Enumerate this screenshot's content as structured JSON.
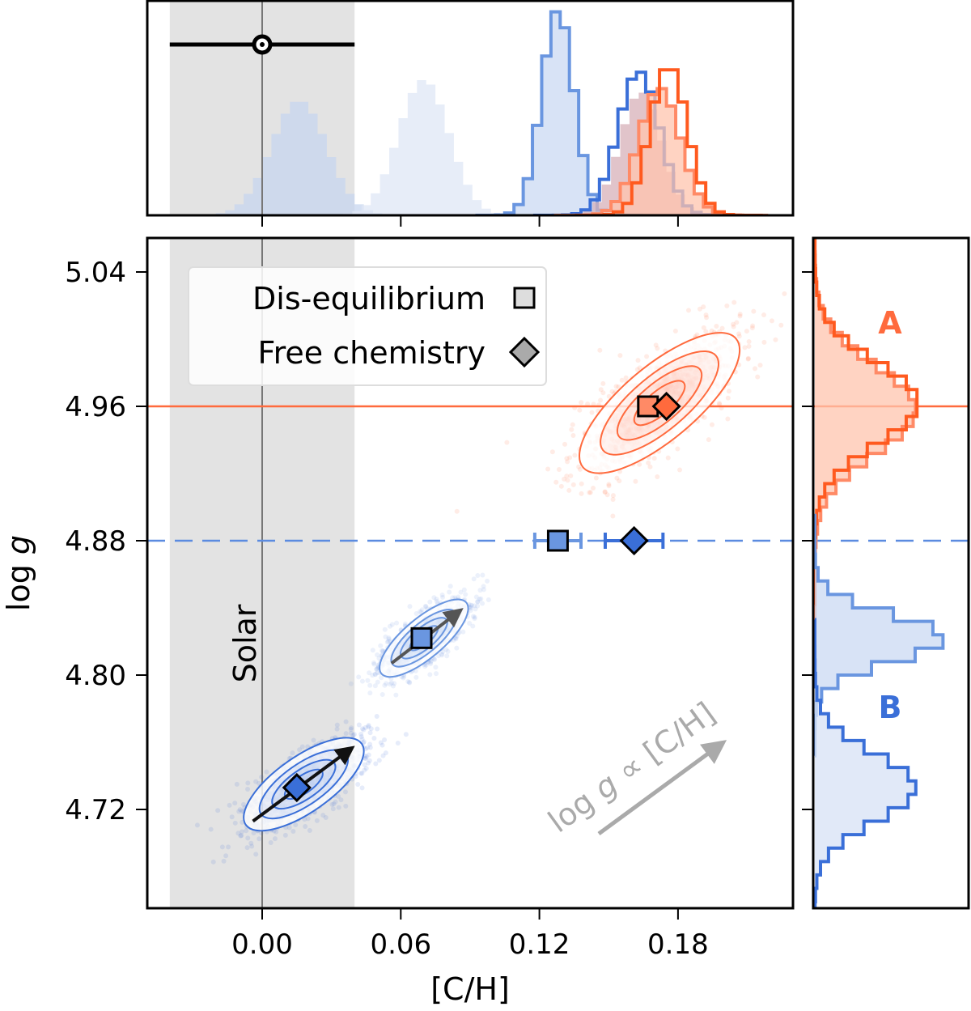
{
  "chart_data": {
    "type": "scatter",
    "xlabel": "[C/H]",
    "ylabel_main": "log ",
    "ylabel_italic": "g",
    "xlim": [
      -0.05,
      0.23
    ],
    "ylim": [
      4.66,
      5.06
    ],
    "x_ticks": [
      "0.00",
      "0.06",
      "0.12",
      "0.18"
    ],
    "x_tick_values": [
      0.0,
      0.06,
      0.12,
      0.18
    ],
    "y_ticks": [
      "5.04",
      "4.96",
      "4.88",
      "4.80",
      "4.72"
    ],
    "y_tick_values": [
      5.04,
      4.96,
      4.88,
      4.8,
      4.72
    ],
    "grid": false,
    "solar": {
      "label": "Solar",
      "value": 0.0,
      "band": [
        -0.04,
        0.04
      ],
      "band_color": "#e3e3e3"
    },
    "colors": {
      "A": "#ff6a3d",
      "A_dark": "#ff5a1f",
      "B_light": "#6a96e0",
      "B_dark": "#3a6fd8",
      "B_faint": "#c7d5ef"
    },
    "legend": {
      "placement": "top-left",
      "entries": [
        {
          "label": "Dis-equilibrium",
          "marker": "square"
        },
        {
          "label": "Free chemistry",
          "marker": "diamond"
        }
      ]
    },
    "labels": {
      "A": "A",
      "B": "B"
    },
    "annotation": {
      "prefix": "log ",
      "italic": "g",
      "suffix": " ∝ [C/H]"
    },
    "reference_lines": [
      {
        "object": "A",
        "logg": 4.96,
        "style": "solid",
        "color": "#ff6a3d"
      },
      {
        "object": "B",
        "logg": 4.88,
        "style": "dashed",
        "color": "#5b8be0"
      }
    ],
    "markers": [
      {
        "object": "A",
        "method": "Dis-equilibrium",
        "marker": "square",
        "x": 0.167,
        "y": 4.96,
        "color": "#ff8a66"
      },
      {
        "object": "A",
        "method": "Free chemistry",
        "marker": "diamond",
        "x": 0.175,
        "y": 4.96,
        "color": "#ff6a3d"
      },
      {
        "object": "B",
        "method": "Dis-equilibrium",
        "marker": "square",
        "x": 0.128,
        "y": 4.88,
        "xerr": 0.01,
        "color": "#6a96e0"
      },
      {
        "object": "B",
        "method": "Free chemistry",
        "marker": "diamond",
        "x": 0.161,
        "y": 4.88,
        "xerr": 0.0125,
        "color": "#3a6fd8"
      },
      {
        "object": "B",
        "method": "Dis-equilibrium",
        "marker": "square",
        "x": 0.069,
        "y": 4.822,
        "color": "#6a96e0"
      },
      {
        "object": "B",
        "method": "Free chemistry",
        "marker": "diamond",
        "x": 0.015,
        "y": 4.733,
        "color": "#3a6fd8"
      }
    ],
    "solar_marker": {
      "x": 0.0,
      "xerr": 0.04
    },
    "posteriors": [
      {
        "object": "A",
        "x": 0.172,
        "y": 4.962,
        "color": "#ff6a3d"
      },
      {
        "object": "B",
        "x": 0.07,
        "y": 4.822,
        "color": "#6a96e0"
      },
      {
        "object": "B",
        "x": 0.018,
        "y": 4.735,
        "color": "#3a6fd8"
      }
    ],
    "arrows": [
      {
        "from": [
          -0.004,
          4.713
        ],
        "to": [
          0.04,
          4.758
        ],
        "color": "#111111"
      },
      {
        "from": [
          0.056,
          4.807
        ],
        "to": [
          0.087,
          4.84
        ],
        "color": "#555555"
      }
    ],
    "top_histograms": [
      {
        "center": 0.016,
        "sd": 0.012,
        "peak": 0.56,
        "fill": "#c7d5ef",
        "outline": null
      },
      {
        "center": 0.07,
        "sd": 0.011,
        "peak": 0.66,
        "fill": "#dfe7f6",
        "outline": null
      },
      {
        "center": 0.128,
        "sd": 0.007,
        "peak": 1.0,
        "fill": "#cbd9f3",
        "outline": "#6a96e0"
      },
      {
        "center": 0.164,
        "sd": 0.009,
        "peak": 0.6,
        "fill": "#d7b0b8",
        "outline": null
      },
      {
        "center": 0.163,
        "sd": 0.009,
        "peak": 0.7,
        "fill": "none",
        "outline": "#3a6fd8"
      },
      {
        "center": 0.172,
        "sd": 0.009,
        "peak": 0.62,
        "fill": "#ffc4ad",
        "outline": "#ff8a66"
      },
      {
        "center": 0.176,
        "sd": 0.008,
        "peak": 0.73,
        "fill": "none",
        "outline": "#ff5a1f"
      }
    ],
    "right_histograms": [
      {
        "center": 4.958,
        "sd": 0.026,
        "peak": 0.78,
        "fill": "#ffc4ad",
        "outline": "#ff8a66"
      },
      {
        "center": 4.962,
        "sd": 0.024,
        "peak": 0.8,
        "fill": "none",
        "outline": "#ff5a1f"
      },
      {
        "center": 4.822,
        "sd": 0.014,
        "peak": 1.0,
        "fill": "#cbd9f3",
        "outline": "#6a96e0"
      },
      {
        "center": 4.733,
        "sd": 0.02,
        "peak": 0.78,
        "fill": "#d7e2f6",
        "outline": "#3a6fd8"
      }
    ]
  }
}
